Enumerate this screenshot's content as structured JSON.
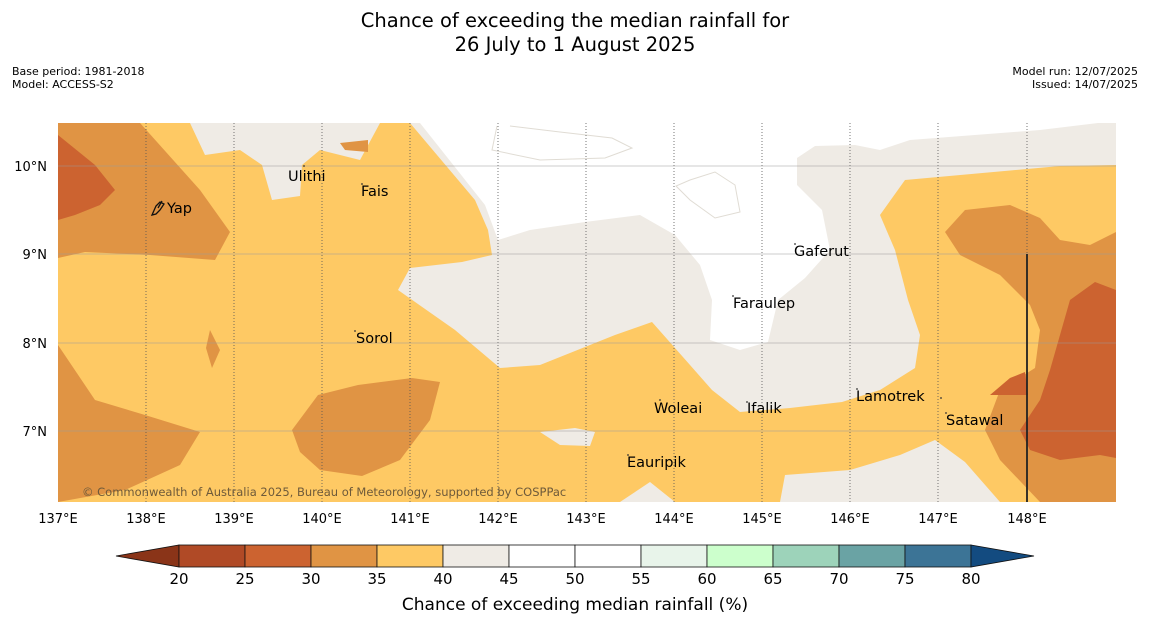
{
  "title": {
    "line1": "Chance of exceeding the median rainfall for",
    "line2": "26 July to 1 August 2025"
  },
  "meta": {
    "base_period": "Base period: 1981-2018",
    "model": "Model: ACCESS-S2",
    "model_run": "Model run: 12/07/2025",
    "issued": "Issued: 14/07/2025"
  },
  "map": {
    "lon_ticks": [
      "137°E",
      "138°E",
      "139°E",
      "140°E",
      "141°E",
      "142°E",
      "143°E",
      "144°E",
      "145°E",
      "146°E",
      "147°E",
      "148°E"
    ],
    "lat_ticks": [
      "10°N",
      "9°N",
      "8°N",
      "7°N"
    ],
    "places": [
      {
        "name": "Yap"
      },
      {
        "name": "Ulithi"
      },
      {
        "name": "Fais"
      },
      {
        "name": "Sorol"
      },
      {
        "name": "Gaferut"
      },
      {
        "name": "Faraulep"
      },
      {
        "name": "Woleai"
      },
      {
        "name": "Ifalik"
      },
      {
        "name": "Lamotrek"
      },
      {
        "name": "Satawal"
      },
      {
        "name": "Eauripik"
      }
    ],
    "copyright": "© Commonwealth of Australia 2025, Bureau of Meteorology, supported by COSPPac"
  },
  "colorbar": {
    "label": "Chance of exceeding median rainfall (%)",
    "ticks": [
      "20",
      "25",
      "30",
      "35",
      "40",
      "45",
      "50",
      "55",
      "60",
      "65",
      "70",
      "75",
      "80"
    ],
    "colors": {
      "below_20": "#8a3418",
      "20_25": "#b04a26",
      "25_30": "#cc6330",
      "30_35": "#e09444",
      "35_40": "#fec964",
      "40_45": "#efebe5",
      "45_50": "#ffffff",
      "50_55": "#ffffff",
      "55_60": "#e8f4ea",
      "60_65": "#ccffcc",
      "65_70": "#9dd3ba",
      "70_75": "#6aa3a4",
      "75_80": "#3c7496",
      "above_80": "#134b80"
    }
  }
}
